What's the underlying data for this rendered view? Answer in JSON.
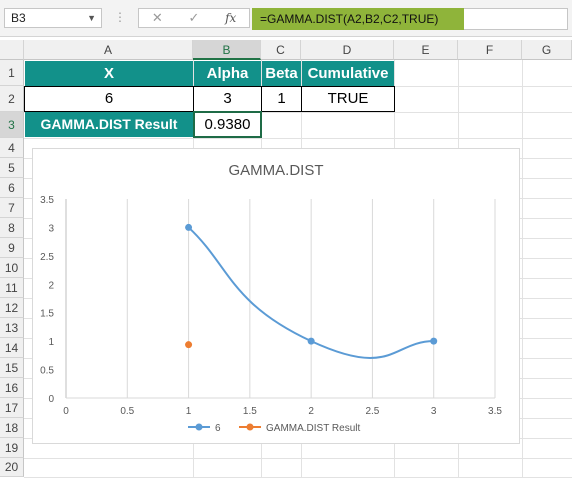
{
  "name_box": "B3",
  "formula": "=GAMMA.DIST(A2,B2,C2,TRUE)",
  "columns": [
    "A",
    "B",
    "C",
    "D",
    "E",
    "F",
    "G"
  ],
  "rows": [
    "1",
    "2",
    "3",
    "4",
    "5",
    "6",
    "7",
    "8",
    "9",
    "10",
    "11",
    "12",
    "13",
    "14",
    "15",
    "16",
    "17",
    "18",
    "19",
    "20"
  ],
  "cells": {
    "a1": "X",
    "b1": "Alpha",
    "c1": "Beta",
    "d1": "Cumulative",
    "a2": "6",
    "b2": "3",
    "c2": "1",
    "d2": "TRUE",
    "a3": "GAMMA.DIST Result",
    "b3": "0.9380"
  },
  "colors": {
    "header_fill": "#12918a",
    "formula_highlight": "#8fb43a",
    "series1": "#5b9bd5",
    "series2": "#ed7d31"
  },
  "icons": [
    "cancel-icon",
    "enter-icon",
    "fx-icon"
  ],
  "chart_data": {
    "type": "scatter",
    "title": "GAMMA.DIST",
    "xlim": [
      0,
      3.5
    ],
    "ylim": [
      0,
      3.5
    ],
    "x_ticks": [
      "0",
      "0.5",
      "1",
      "1.5",
      "2",
      "2.5",
      "3",
      "3.5"
    ],
    "y_ticks": [
      "0",
      "0.5",
      "1",
      "1.5",
      "2",
      "2.5",
      "3",
      "3.5"
    ],
    "grid": "vertical",
    "legend": "bottom",
    "series": [
      {
        "name": "6",
        "color": "#5b9bd5",
        "smooth": true,
        "points": [
          [
            1,
            3
          ],
          [
            2,
            1
          ],
          [
            3,
            1
          ]
        ]
      },
      {
        "name": "GAMMA.DIST Result",
        "color": "#ed7d31",
        "smooth": false,
        "points": [
          [
            1,
            0.938
          ]
        ]
      }
    ]
  }
}
